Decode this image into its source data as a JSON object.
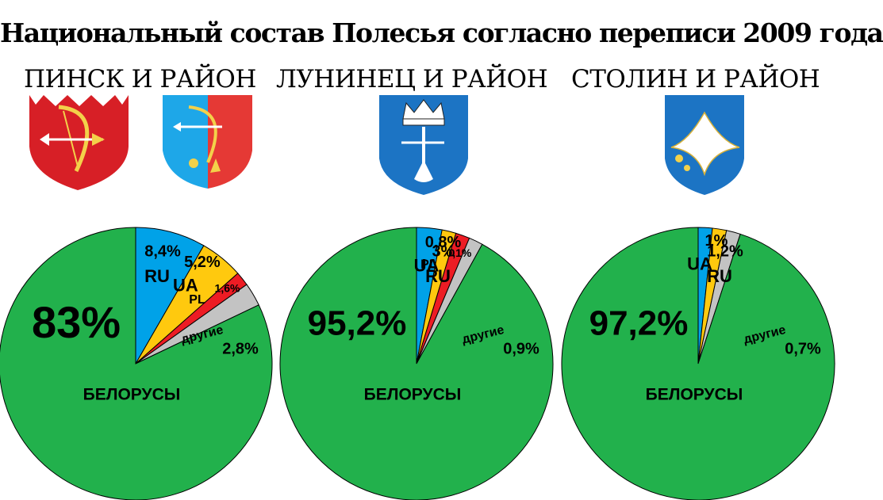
{
  "title": "Национальный состав Полесья согласно переписи 2009 года",
  "colors": {
    "belarusians": "#22b14c",
    "ru": "#00a2e8",
    "ua": "#ffc90e",
    "pl": "#ed1c24",
    "other": "#c3c3c3"
  },
  "regions": [
    {
      "name": "ПИНСК И РАЙОН",
      "emblems": [
        "pinsk-city-coat-of-arms",
        "pinsk-district-coat-of-arms"
      ]
    },
    {
      "name": "ЛУНИНЕЦ И РАЙОН",
      "emblems": [
        "luninets-coat-of-arms"
      ]
    },
    {
      "name": "СТОЛИН И РАЙОН",
      "emblems": [
        "stolin-coat-of-arms"
      ]
    }
  ],
  "chart_data": [
    {
      "type": "pie",
      "slices": [
        {
          "key": "ru",
          "name": "RU",
          "value": 8.4,
          "label": "8,4%"
        },
        {
          "key": "ua",
          "name": "UA",
          "value": 5.2,
          "label": "5,2%"
        },
        {
          "key": "pl",
          "name": "PL",
          "value": 1.6,
          "label": "1,6%"
        },
        {
          "key": "other",
          "name": "другие",
          "value": 2.8,
          "label": "2,8%"
        },
        {
          "key": "belarusians",
          "name": "БЕЛОРУСЫ",
          "value": 83,
          "label": "83%"
        }
      ]
    },
    {
      "type": "pie",
      "slices": [
        {
          "key": "ru",
          "name": "RU",
          "value": 3,
          "label": "3%"
        },
        {
          "key": "ua",
          "name": "UA",
          "value": 0.8,
          "label": "0,8%"
        },
        {
          "key": "pl",
          "name": "PL",
          "value": 0.1,
          "label": "0,1%"
        },
        {
          "key": "other",
          "name": "другие",
          "value": 0.9,
          "label": "0,9%"
        },
        {
          "key": "belarusians",
          "name": "БЕЛОРУСЫ",
          "value": 95.2,
          "label": "95,2%"
        }
      ]
    },
    {
      "type": "pie",
      "slices": [
        {
          "key": "ru",
          "name": "RU",
          "value": 1.2,
          "label": "1,2%"
        },
        {
          "key": "ua",
          "name": "UA",
          "value": 1,
          "label": "1%"
        },
        {
          "key": "other",
          "name": "другие",
          "value": 0.7,
          "label": "0,7%"
        },
        {
          "key": "belarusians",
          "name": "БЕЛОРУСЫ",
          "value": 97.2,
          "label": "97,2%"
        }
      ]
    }
  ]
}
